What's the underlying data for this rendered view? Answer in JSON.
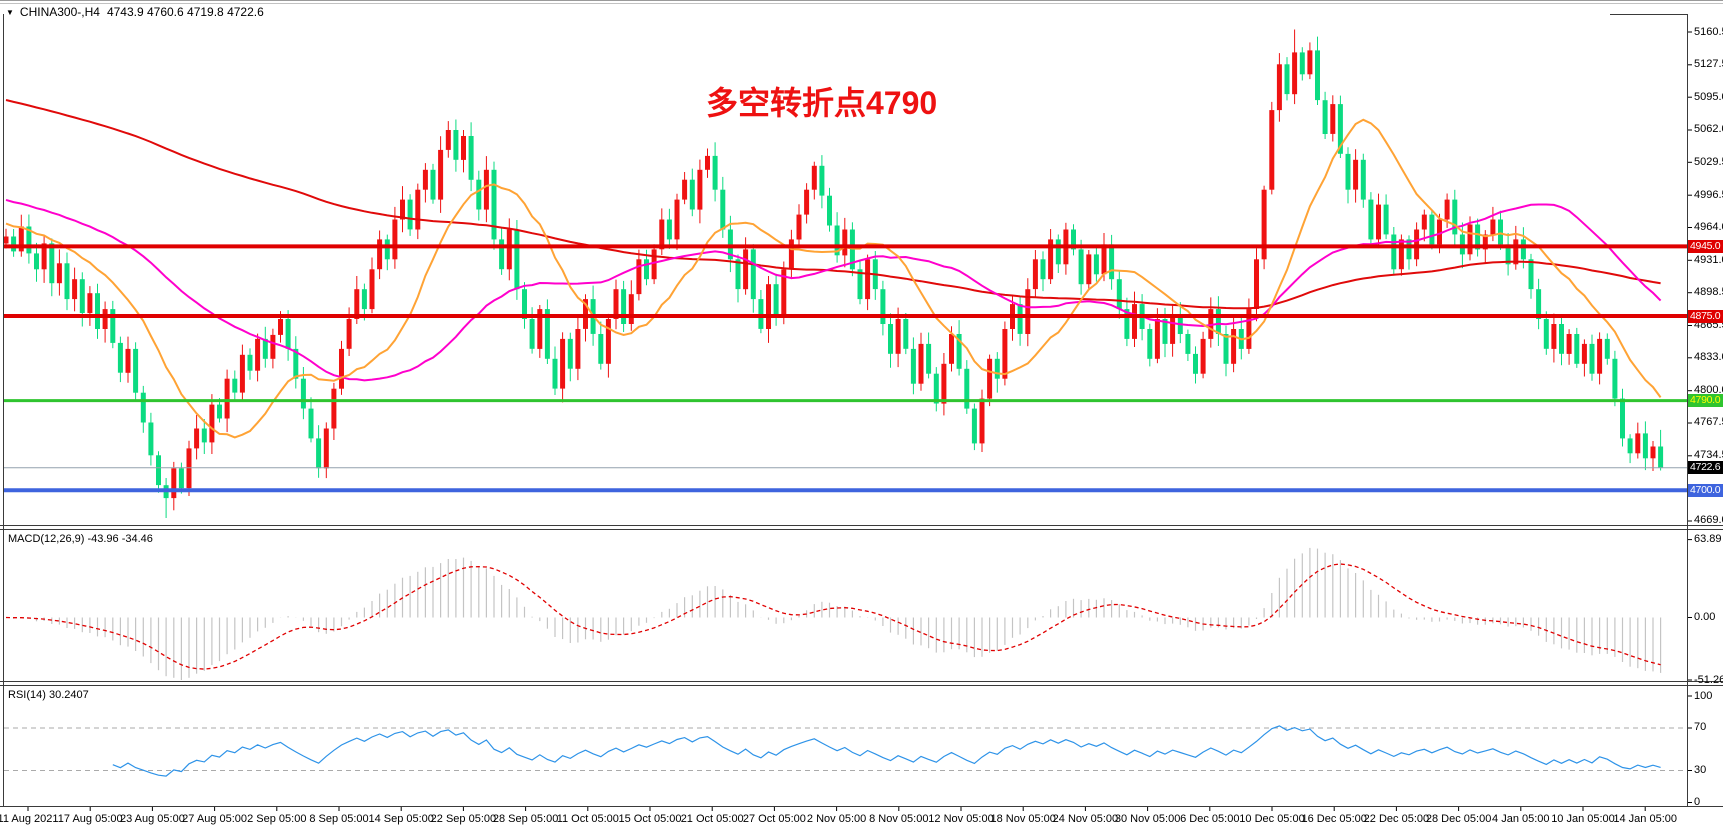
{
  "header": {
    "dropdown_icon": "▼",
    "symbol": "CHINA300-,H4",
    "ohlc": "4743.9 4760.6 4719.8 4722.6"
  },
  "annotation": {
    "text": "多空转折点4790",
    "color": "#ee1111"
  },
  "panels": {
    "macd": {
      "label": "MACD(12,26,9) -43.96 -34.46",
      "axis_labels": [
        "63.89",
        "0.00",
        "-51.26"
      ]
    },
    "rsi": {
      "label": "RSI(14) 30.2407",
      "axis_labels": [
        "100",
        "70",
        "30",
        "0"
      ]
    }
  },
  "price_axis": {
    "labels": [
      "5160.5",
      "5127.5",
      "5095.0",
      "5062.0",
      "5029.5",
      "4996.5",
      "4964.0",
      "4931.0",
      "4898.5",
      "4865.5",
      "4833.0",
      "4800.0",
      "4767.5",
      "4734.5",
      "4669.0"
    ]
  },
  "time_axis": {
    "labels": [
      "11 Aug 2021",
      "17 Aug 05:00",
      "23 Aug 05:00",
      "27 Aug 05:00",
      "2 Sep 05:00",
      "8 Sep 05:00",
      "14 Sep 05:00",
      "22 Sep 05:00",
      "28 Sep 05:00",
      "11 Oct 05:00",
      "15 Oct 05:00",
      "21 Oct 05:00",
      "27 Oct 05:00",
      "2 Nov 05:00",
      "8 Nov 05:00",
      "12 Nov 05:00",
      "18 Nov 05:00",
      "24 Nov 05:00",
      "30 Nov 05:00",
      "6 Dec 05:00",
      "10 Dec 05:00",
      "16 Dec 05:00",
      "22 Dec 05:00",
      "28 Dec 05:00",
      "4 Jan 05:00",
      "10 Jan 05:00",
      "14 Jan 05:00"
    ]
  },
  "chart_data": {
    "type": "candlestick",
    "symbol": "CHINA300-",
    "timeframe": "H4",
    "title": "多空转折点4790",
    "ylim": [
      4669.0,
      5160.5
    ],
    "bull_color": "#ef1212",
    "bear_color": "#0bdb81",
    "closes": [
      4955,
      4940,
      4965,
      4938,
      4922,
      4948,
      4908,
      4928,
      4892,
      4912,
      4878,
      4898,
      4862,
      4882,
      4848,
      4818,
      4842,
      4798,
      4768,
      4735,
      4705,
      4692,
      4722,
      4702,
      4742,
      4762,
      4748,
      4786,
      4772,
      4812,
      4798,
      4836,
      4820,
      4852,
      4832,
      4856,
      4872,
      4842,
      4812,
      4782,
      4752,
      4722,
      4762,
      4802,
      4842,
      4872,
      4902,
      4882,
      4922,
      4952,
      4932,
      4972,
      4992,
      4962,
      5002,
      5022,
      4992,
      5042,
      5062,
      5032,
      5056,
      5012,
      4982,
      5022,
      4952,
      4922,
      4962,
      4902,
      4872,
      4842,
      4882,
      4832,
      4802,
      4852,
      4822,
      4862,
      4892,
      4857,
      4827,
      4872,
      4902,
      4867,
      4897,
      4932,
      4912,
      4942,
      4972,
      4952,
      4992,
      5012,
      4982,
      5022,
      5036,
      5002,
      4962,
      4932,
      4902,
      4942,
      4892,
      4862,
      4907,
      4877,
      4922,
      4952,
      4977,
      5002,
      5026,
      4996,
      4966,
      4936,
      4962,
      4922,
      4892,
      4932,
      4902,
      4867,
      4837,
      4872,
      4842,
      4807,
      4847,
      4817,
      4787,
      4827,
      4857,
      4822,
      4782,
      4747,
      4792,
      4832,
      4812,
      4862,
      4887,
      4857,
      4902,
      4932,
      4912,
      4952,
      4927,
      4962,
      4942,
      4907,
      4937,
      4917,
      4947,
      4912,
      4882,
      4852,
      4887,
      4862,
      4832,
      4872,
      4847,
      4877,
      4857,
      4837,
      4817,
      4852,
      4882,
      4857,
      4827,
      4862,
      4842,
      4882,
      4932,
      5002,
      5082,
      5128,
      5098,
      5140,
      5118,
      5142,
      5092,
      5058,
      5088,
      5038,
      5002,
      5032,
      4992,
      4952,
      4987,
      4957,
      4922,
      4952,
      4932,
      4962,
      4977,
      4947,
      4972,
      4992,
      4957,
      4937,
      4967,
      4942,
      4957,
      4972,
      4947,
      4927,
      4952,
      4932,
      4902,
      4872,
      4842,
      4867,
      4837,
      4857,
      4827,
      4847,
      4817,
      4852,
      4832,
      4792,
      4752,
      4737,
      4757,
      4732,
      4743.9,
      4722.6
    ],
    "last_bar": {
      "open": 4743.9,
      "high": 4760.6,
      "low": 4719.8,
      "close": 4722.6
    },
    "wick_overrides": {
      "21": {
        "low": 4672
      },
      "169": {
        "high": 5163
      }
    },
    "moving_averages": [
      {
        "name": "slow",
        "color": "#e00a0a",
        "period": 150
      },
      {
        "name": "medium",
        "color": "#ff00cc",
        "period": 40
      },
      {
        "name": "fast",
        "color": "#ffa335",
        "period": 14
      }
    ],
    "horizontal_lines": [
      {
        "price": 4945.0,
        "label": "4945.0",
        "color": "#df0000",
        "width": 4,
        "badge_bg": "#df0000",
        "badge_fg": "#ffffff"
      },
      {
        "price": 4875.0,
        "label": "4875.0",
        "color": "#df0000",
        "width": 4,
        "badge_bg": "#df0000",
        "badge_fg": "#ffffff"
      },
      {
        "price": 4790.0,
        "label": "4790.0",
        "color": "#2fc42f",
        "width": 3,
        "badge_bg": "#2fc42f",
        "badge_fg": "#ffff00"
      },
      {
        "price": 4700.0,
        "label": "4700.0",
        "color": "#3e64de",
        "width": 4,
        "badge_bg": "#3e64de",
        "badge_fg": "#ffffff"
      }
    ],
    "current_price_line": {
      "price": 4722.6,
      "label": "4722.6",
      "color": "#94a1ae",
      "badge_bg": "#000000",
      "badge_fg": "#ffffff"
    },
    "macd": {
      "fast": 12,
      "slow": 26,
      "signal": 9,
      "value": -43.96,
      "signal_value": -34.46,
      "range": [
        -51.26,
        63.89
      ],
      "histogram_color": "#c4c4c4",
      "signal_color": "#e00000"
    },
    "rsi": {
      "period": 14,
      "value": 30.2407,
      "levels": [
        30,
        70
      ],
      "range": [
        0,
        100
      ],
      "color": "#2e93e8"
    }
  }
}
